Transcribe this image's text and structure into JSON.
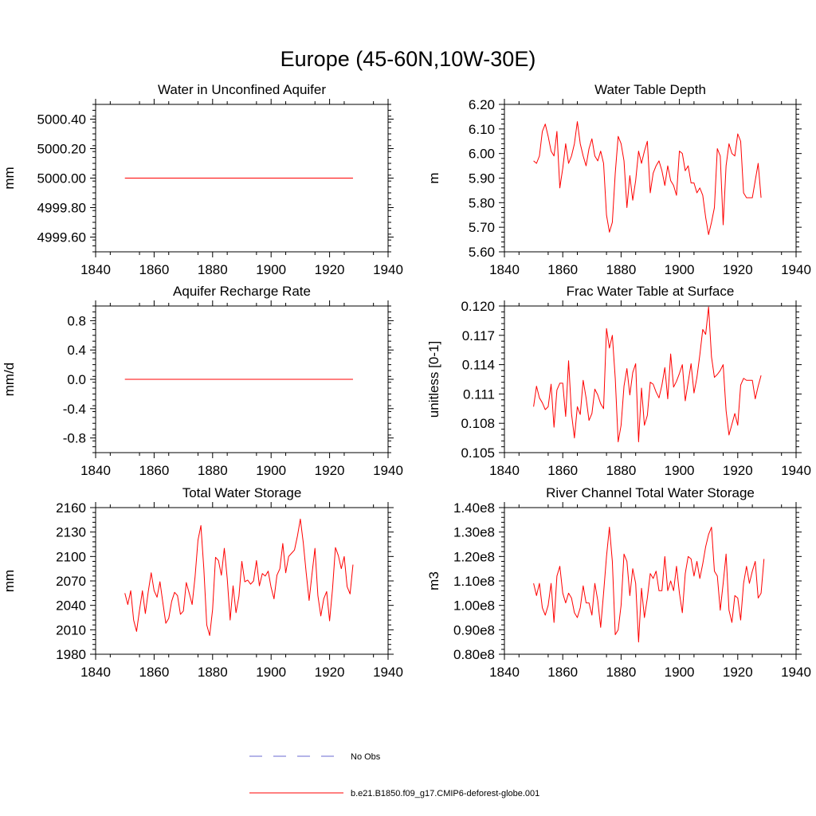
{
  "figure_title": "Europe (45-60N,10W-30E)",
  "colors": {
    "model_line": "#ff0000",
    "obs_line": "#6a6ad0",
    "axis": "#000000"
  },
  "legend": {
    "entries": [
      {
        "label": "No Obs",
        "style": "dashed",
        "color": "#6a6ad0"
      },
      {
        "label": "b.e21.B1850.f09_g17.CMIP6-deforest-globe.001",
        "style": "solid",
        "color": "#ff0000"
      }
    ]
  },
  "chart_data": [
    {
      "type": "line",
      "title": "Water in Unconfined Aquifer",
      "ylabel": "mm",
      "xlim": [
        1840,
        1940
      ],
      "ylim": [
        4999.5,
        5000.5
      ],
      "xticks": [
        1840,
        1860,
        1880,
        1900,
        1920,
        1940
      ],
      "xtick_labels": [
        "1840",
        "1860",
        "1880",
        "1900",
        "1920",
        "1940"
      ],
      "yticks": [
        4999.6,
        4999.8,
        5000.0,
        5000.2,
        5000.4
      ],
      "ytick_labels": [
        "4999.60",
        "4999.80",
        "5000.00",
        "5000.20",
        "5000.40"
      ],
      "series": [
        {
          "name": "b.e21.B1850.f09_g17.CMIP6-deforest-globe.001",
          "x_start": 1850,
          "values": [
            5000,
            5000,
            5000,
            5000,
            5000,
            5000,
            5000,
            5000,
            5000,
            5000,
            5000,
            5000,
            5000,
            5000,
            5000,
            5000,
            5000,
            5000,
            5000,
            5000,
            5000,
            5000,
            5000,
            5000,
            5000,
            5000,
            5000,
            5000,
            5000,
            5000,
            5000,
            5000,
            5000,
            5000,
            5000,
            5000,
            5000,
            5000,
            5000,
            5000,
            5000,
            5000,
            5000,
            5000,
            5000,
            5000,
            5000,
            5000,
            5000,
            5000,
            5000,
            5000,
            5000,
            5000,
            5000,
            5000,
            5000,
            5000,
            5000,
            5000,
            5000,
            5000,
            5000,
            5000,
            5000,
            5000,
            5000,
            5000,
            5000,
            5000,
            5000,
            5000,
            5000,
            5000,
            5000,
            5000,
            5000,
            5000,
            5000
          ]
        }
      ]
    },
    {
      "type": "line",
      "title": "Water Table Depth",
      "ylabel": "m",
      "xlim": [
        1840,
        1940
      ],
      "ylim": [
        5.6,
        6.2
      ],
      "xticks": [
        1840,
        1860,
        1880,
        1900,
        1920,
        1940
      ],
      "xtick_labels": [
        "1840",
        "1860",
        "1880",
        "1900",
        "1920",
        "1940"
      ],
      "yticks": [
        5.6,
        5.7,
        5.8,
        5.9,
        6.0,
        6.1,
        6.2
      ],
      "ytick_labels": [
        "5.60",
        "5.70",
        "5.80",
        "5.90",
        "6.00",
        "6.10",
        "6.20"
      ],
      "series": [
        {
          "name": "b.e21.B1850.f09_g17.CMIP6-deforest-globe.001",
          "x_start": 1850,
          "values": [
            5.97,
            5.96,
            5.99,
            6.09,
            6.12,
            6.07,
            6.01,
            5.99,
            6.09,
            5.86,
            5.94,
            6.04,
            5.96,
            5.99,
            6.04,
            6.13,
            6.04,
            5.99,
            5.95,
            6.02,
            6.06,
            5.99,
            5.97,
            6.01,
            5.96,
            5.75,
            5.68,
            5.72,
            5.92,
            6.07,
            6.04,
            5.97,
            5.78,
            5.91,
            5.81,
            5.89,
            6.01,
            5.96,
            6.01,
            6.05,
            5.84,
            5.92,
            5.95,
            5.97,
            5.93,
            5.87,
            5.95,
            5.89,
            5.87,
            5.83,
            6.01,
            6.0,
            5.93,
            5.95,
            5.88,
            5.88,
            5.84,
            5.86,
            5.83,
            5.74,
            5.67,
            5.72,
            5.78,
            6.02,
            5.99,
            5.71,
            5.95,
            6.04,
            6.0,
            5.99,
            6.08,
            6.05,
            5.84,
            5.82,
            5.82,
            5.82,
            5.89,
            5.96,
            5.82
          ]
        }
      ]
    },
    {
      "type": "line",
      "title": "Aquifer Recharge Rate",
      "ylabel": "mm/d",
      "xlim": [
        1840,
        1940
      ],
      "ylim": [
        -1.0,
        1.0
      ],
      "xticks": [
        1840,
        1860,
        1880,
        1900,
        1920,
        1940
      ],
      "xtick_labels": [
        "1840",
        "1860",
        "1880",
        "1900",
        "1920",
        "1940"
      ],
      "yticks": [
        -0.8,
        -0.4,
        0.0,
        0.4,
        0.8
      ],
      "ytick_labels": [
        "-0.8",
        "-0.4",
        "0.0",
        "0.4",
        "0.8"
      ],
      "series": [
        {
          "name": "b.e21.B1850.f09_g17.CMIP6-deforest-globe.001",
          "x_start": 1850,
          "values": [
            0,
            0,
            0,
            0,
            0,
            0,
            0,
            0,
            0,
            0,
            0,
            0,
            0,
            0,
            0,
            0,
            0,
            0,
            0,
            0,
            0,
            0,
            0,
            0,
            0,
            0,
            0,
            0,
            0,
            0,
            0,
            0,
            0,
            0,
            0,
            0,
            0,
            0,
            0,
            0,
            0,
            0,
            0,
            0,
            0,
            0,
            0,
            0,
            0,
            0,
            0,
            0,
            0,
            0,
            0,
            0,
            0,
            0,
            0,
            0,
            0,
            0,
            0,
            0,
            0,
            0,
            0,
            0,
            0,
            0,
            0,
            0,
            0,
            0,
            0,
            0,
            0,
            0,
            0
          ]
        }
      ]
    },
    {
      "type": "line",
      "title": "Frac Water Table at Surface",
      "ylabel": "unitless [0-1]",
      "xlim": [
        1840,
        1940
      ],
      "ylim": [
        0.105,
        0.12
      ],
      "xticks": [
        1840,
        1860,
        1880,
        1900,
        1920,
        1940
      ],
      "xtick_labels": [
        "1840",
        "1860",
        "1880",
        "1900",
        "1920",
        "1940"
      ],
      "yticks": [
        0.105,
        0.108,
        0.111,
        0.114,
        0.117,
        0.12
      ],
      "ytick_labels": [
        "0.105",
        "0.108",
        "0.111",
        "0.114",
        "0.117",
        "0.120"
      ],
      "series": [
        {
          "name": "b.e21.B1850.f09_g17.CMIP6-deforest-globe.001",
          "x_start": 1850,
          "values": [
            0.1097,
            0.1118,
            0.1106,
            0.1101,
            0.1094,
            0.1097,
            0.112,
            0.1076,
            0.1114,
            0.1121,
            0.1121,
            0.1087,
            0.1144,
            0.109,
            0.1065,
            0.1097,
            0.1089,
            0.1124,
            0.1106,
            0.1083,
            0.109,
            0.1115,
            0.1109,
            0.11,
            0.1095,
            0.1177,
            0.1157,
            0.117,
            0.1126,
            0.1061,
            0.1078,
            0.1118,
            0.1136,
            0.1109,
            0.1132,
            0.1141,
            0.1061,
            0.1116,
            0.1078,
            0.1088,
            0.1122,
            0.112,
            0.1112,
            0.1106,
            0.1119,
            0.1137,
            0.1105,
            0.1151,
            0.1117,
            0.1123,
            0.1131,
            0.114,
            0.1103,
            0.1122,
            0.1141,
            0.1111,
            0.1127,
            0.115,
            0.1176,
            0.1171,
            0.1199,
            0.1148,
            0.1127,
            0.113,
            0.1134,
            0.114,
            0.1093,
            0.1068,
            0.1079,
            0.109,
            0.1078,
            0.1119,
            0.1126,
            0.1124,
            0.1124,
            0.1124,
            0.1105,
            0.1118,
            0.1129
          ]
        }
      ]
    },
    {
      "type": "line",
      "title": "Total Water Storage",
      "ylabel": "mm",
      "xlim": [
        1840,
        1940
      ],
      "ylim": [
        1980,
        2160
      ],
      "xticks": [
        1840,
        1860,
        1880,
        1900,
        1920,
        1940
      ],
      "xtick_labels": [
        "1840",
        "1860",
        "1880",
        "1900",
        "1920",
        "1940"
      ],
      "yticks": [
        1980,
        2010,
        2040,
        2070,
        2100,
        2130,
        2160
      ],
      "ytick_labels": [
        "1980",
        "2010",
        "2040",
        "2070",
        "2100",
        "2130",
        "2160"
      ],
      "series": [
        {
          "name": "b.e21.B1850.f09_g17.CMIP6-deforest-globe.001",
          "x_start": 1850,
          "values": [
            2055,
            2041,
            2058,
            2022,
            2008,
            2034,
            2058,
            2030,
            2057,
            2080,
            2058,
            2050,
            2069,
            2043,
            2018,
            2024,
            2045,
            2056,
            2052,
            2029,
            2033,
            2068,
            2055,
            2041,
            2075,
            2120,
            2138,
            2085,
            2016,
            2003,
            2035,
            2099,
            2095,
            2077,
            2110,
            2073,
            2022,
            2064,
            2031,
            2051,
            2094,
            2069,
            2071,
            2066,
            2070,
            2095,
            2064,
            2079,
            2076,
            2082,
            2062,
            2048,
            2077,
            2085,
            2116,
            2080,
            2100,
            2104,
            2108,
            2125,
            2146,
            2117,
            2080,
            2046,
            2079,
            2110,
            2052,
            2027,
            2048,
            2057,
            2021,
            2060,
            2111,
            2101,
            2085,
            2100,
            2063,
            2054,
            2090
          ]
        }
      ]
    },
    {
      "type": "line",
      "title": "River Channel Total Water Storage",
      "ylabel": "m3",
      "xlim": [
        1840,
        1940
      ],
      "ylim": [
        0.8,
        1.4
      ],
      "xticks": [
        1840,
        1860,
        1880,
        1900,
        1920,
        1940
      ],
      "xtick_labels": [
        "1840",
        "1860",
        "1880",
        "1900",
        "1920",
        "1940"
      ],
      "yticks": [
        0.8,
        0.9,
        1.0,
        1.1,
        1.2,
        1.3,
        1.4
      ],
      "ytick_labels": [
        "0.80e8",
        "0.90e8",
        "1.00e8",
        "1.10e8",
        "1.20e8",
        "1.30e8",
        "1.40e8"
      ],
      "y_unit_multiplier": "e8",
      "series": [
        {
          "name": "b.e21.B1850.f09_g17.CMIP6-deforest-globe.001",
          "x_start": 1850,
          "values": [
            1.09,
            1.04,
            1.09,
            0.99,
            0.96,
            1.0,
            1.09,
            0.93,
            1.12,
            1.16,
            1.05,
            1.01,
            1.05,
            1.03,
            0.97,
            0.95,
            0.99,
            1.08,
            1.01,
            1.01,
            0.96,
            1.09,
            1.02,
            0.91,
            1.05,
            1.2,
            1.32,
            1.18,
            0.88,
            0.9,
            1.0,
            1.21,
            1.18,
            1.04,
            1.15,
            1.09,
            0.85,
            1.07,
            0.95,
            1.03,
            1.13,
            1.11,
            1.14,
            1.06,
            1.06,
            1.2,
            1.06,
            1.1,
            1.06,
            1.16,
            1.05,
            0.97,
            1.13,
            1.2,
            1.19,
            1.12,
            1.18,
            1.11,
            1.17,
            1.24,
            1.29,
            1.32,
            1.14,
            1.12,
            0.98,
            1.09,
            1.21,
            0.98,
            0.93,
            1.04,
            1.03,
            0.94,
            1.09,
            1.16,
            1.09,
            1.14,
            1.18,
            1.03,
            1.05,
            1.19
          ]
        }
      ]
    }
  ]
}
